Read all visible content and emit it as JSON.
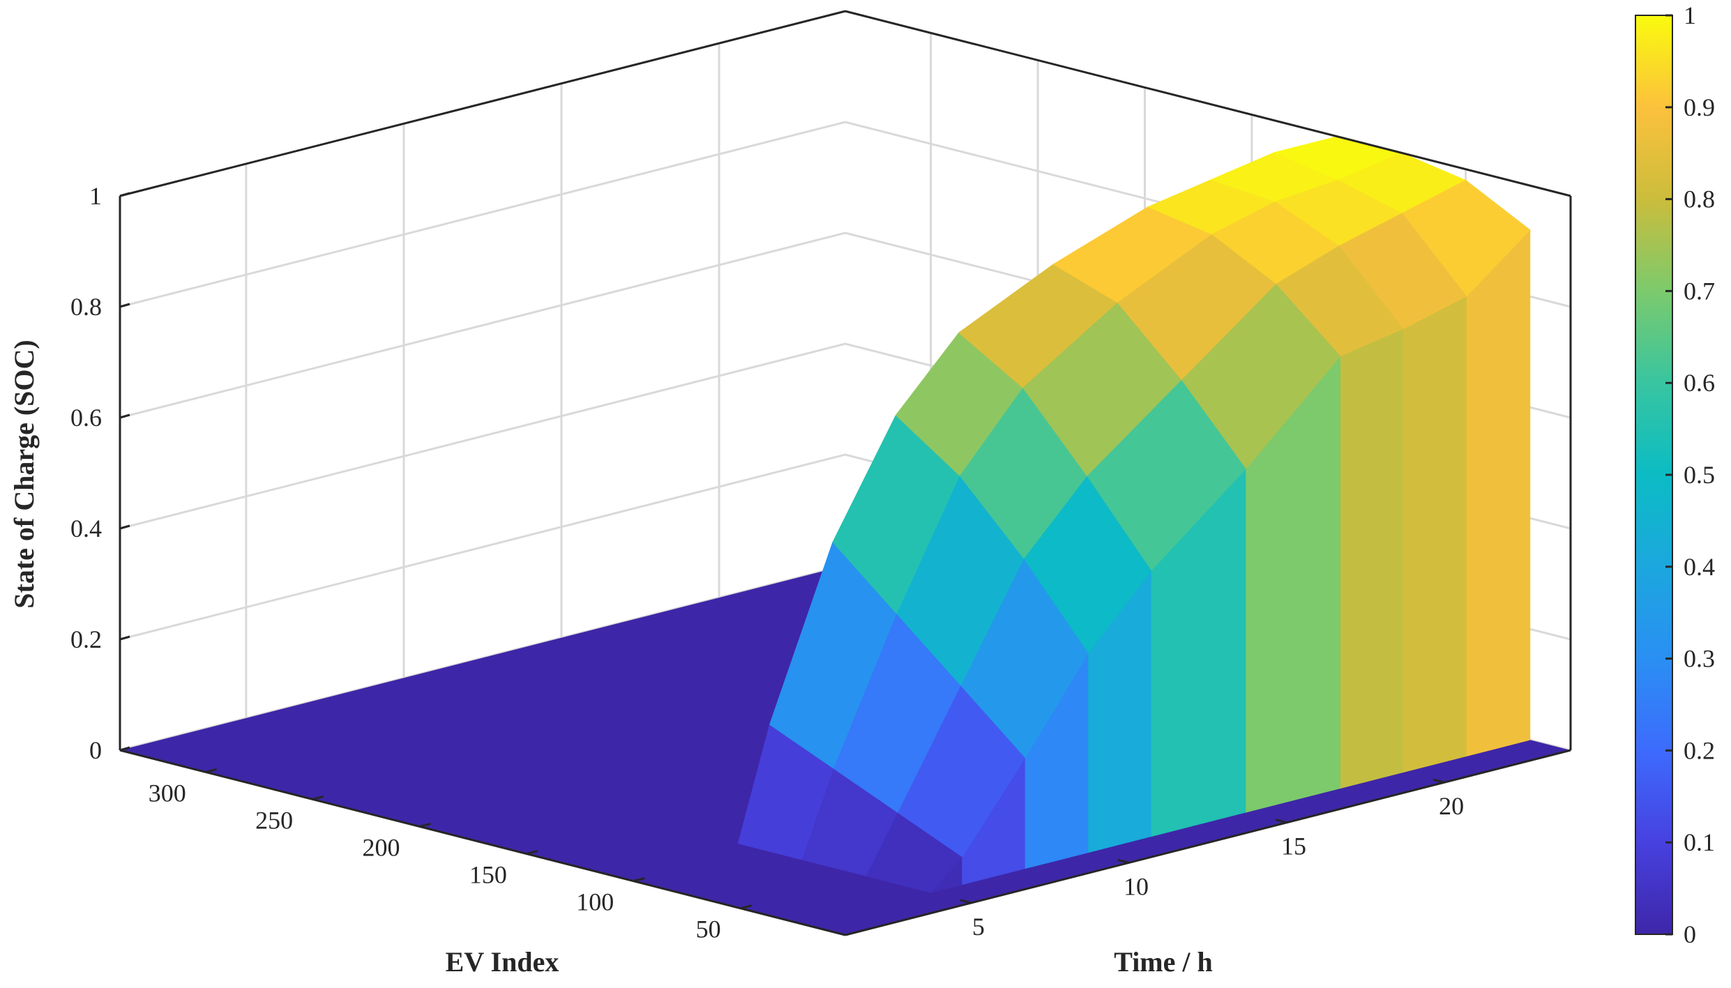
{
  "chart_data": {
    "type": "surface3d",
    "xlabel": "EV Index",
    "ylabel": "Time / h",
    "zlabel": "State of Charge (SOC)",
    "x_ticks": [
      50,
      100,
      150,
      200,
      250,
      300
    ],
    "x_tick_labels": [
      "50",
      "100",
      "150",
      "200",
      "250",
      "300"
    ],
    "xlim": [
      1,
      340
    ],
    "y_ticks": [
      5,
      10,
      15,
      20
    ],
    "y_tick_labels": [
      "5",
      "10",
      "15",
      "20"
    ],
    "ylim": [
      1,
      24
    ],
    "z_ticks": [
      0,
      0.2,
      0.4,
      0.6,
      0.8,
      1
    ],
    "z_tick_labels": [
      "0",
      "0.2",
      "0.4",
      "0.6",
      "0.8",
      "1"
    ],
    "zlim": [
      0,
      1
    ],
    "grid": true,
    "colormap": "parula",
    "colorbar": {
      "ticks": [
        0,
        0.1,
        0.2,
        0.3,
        0.4,
        0.5,
        0.6,
        0.7,
        0.8,
        0.9,
        1
      ],
      "tick_labels": [
        "0",
        "0.1",
        "0.2",
        "0.3",
        "0.4",
        "0.5",
        "0.6",
        "0.7",
        "0.8",
        "0.9",
        "1"
      ],
      "range": [
        0,
        1
      ],
      "placement": "right"
    },
    "description_of_data": "SOC is 0 for all EVs until about t=6 h, then rises with time to about 0.8-1.0 by t=24 h for EV indices 1-120; EVs above ~120 remain at 0.",
    "series": [
      {
        "ev_index": 20,
        "time": [
          1,
          5,
          6,
          8,
          10,
          12,
          15,
          18,
          20,
          22,
          24
        ],
        "soc": [
          0,
          0,
          0.05,
          0.2,
          0.36,
          0.48,
          0.62,
          0.78,
          0.8,
          0.83,
          0.92
        ]
      },
      {
        "ev_index": 50,
        "time": [
          1,
          5,
          6,
          8,
          10,
          12,
          15,
          18,
          20,
          22,
          24
        ],
        "soc": [
          0,
          0,
          0.1,
          0.3,
          0.5,
          0.62,
          0.75,
          0.88,
          0.92,
          0.95,
          0.98
        ]
      },
      {
        "ev_index": 80,
        "time": [
          1,
          5,
          6,
          8,
          10,
          12,
          15,
          18,
          20,
          22,
          24
        ],
        "soc": [
          0,
          0,
          0.15,
          0.4,
          0.62,
          0.75,
          0.86,
          0.94,
          0.97,
          0.98,
          1.0
        ]
      },
      {
        "ev_index": 110,
        "time": [
          1,
          5,
          6,
          8,
          10,
          12,
          15,
          18,
          20,
          22,
          24
        ],
        "soc": [
          0,
          0,
          0.2,
          0.5,
          0.7,
          0.82,
          0.9,
          0.96,
          0.98,
          1.0,
          1.0
        ]
      },
      {
        "ev_index": 125,
        "time": [
          1,
          5,
          6,
          8,
          10,
          12,
          15,
          18,
          20,
          22,
          24
        ],
        "soc": [
          0,
          0,
          0,
          0,
          0,
          0,
          0,
          0,
          0,
          0,
          0
        ]
      },
      {
        "ev_index": 200,
        "time": [
          1,
          5,
          6,
          8,
          10,
          12,
          15,
          18,
          20,
          22,
          24
        ],
        "soc": [
          0,
          0,
          0,
          0,
          0,
          0,
          0,
          0,
          0,
          0,
          0
        ]
      },
      {
        "ev_index": 300,
        "time": [
          1,
          5,
          6,
          8,
          10,
          12,
          15,
          18,
          20,
          22,
          24
        ],
        "soc": [
          0,
          0,
          0,
          0,
          0,
          0,
          0,
          0,
          0,
          0,
          0
        ]
      }
    ]
  }
}
